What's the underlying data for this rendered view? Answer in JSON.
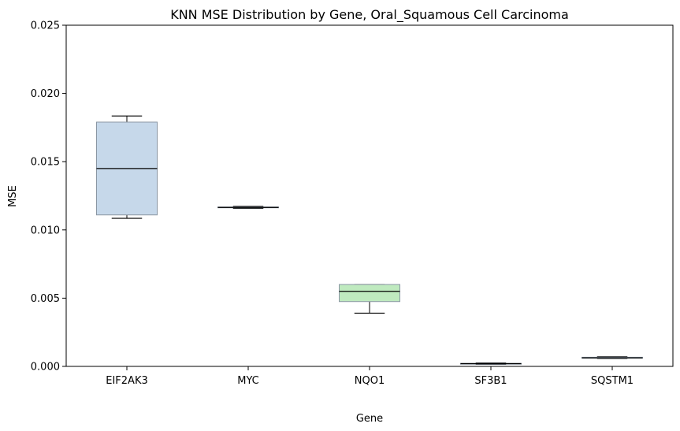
{
  "chart_data": {
    "type": "box",
    "title": "KNN MSE Distribution by Gene, Oral_Squamous Cell Carcinoma",
    "xlabel": "Gene",
    "ylabel": "MSE",
    "ylim": [
      0,
      0.025
    ],
    "yticks": [
      "0.000",
      "0.005",
      "0.010",
      "0.015",
      "0.020",
      "0.025"
    ],
    "grid": false,
    "categories": [
      "EIF2AK3",
      "MYC",
      "NQO1",
      "SF3B1",
      "SQSTM1"
    ],
    "boxes": [
      {
        "category": "EIF2AK3",
        "whisker_low": 0.01085,
        "q1": 0.0111,
        "median": 0.0145,
        "q3": 0.0179,
        "whisker_high": 0.01835,
        "color": "#c6d8ea"
      },
      {
        "category": "MYC",
        "whisker_low": 0.01158,
        "q1": 0.01162,
        "median": 0.01165,
        "q3": 0.01168,
        "whisker_high": 0.01172,
        "color": "#fde0c2"
      },
      {
        "category": "NQO1",
        "whisker_low": 0.0039,
        "q1": 0.00475,
        "median": 0.0055,
        "q3": 0.006,
        "whisker_high": 0.006,
        "color": "#bfeabf"
      },
      {
        "category": "SF3B1",
        "whisker_low": 0.00015,
        "q1": 0.00018,
        "median": 0.0002,
        "q3": 0.00022,
        "whisker_high": 0.00025,
        "color": "#f4c2c2"
      },
      {
        "category": "SQSTM1",
        "whisker_low": 0.00058,
        "q1": 0.0006,
        "median": 0.00063,
        "q3": 0.00067,
        "whisker_high": 0.0007,
        "color": "#d9cbe8"
      }
    ]
  }
}
